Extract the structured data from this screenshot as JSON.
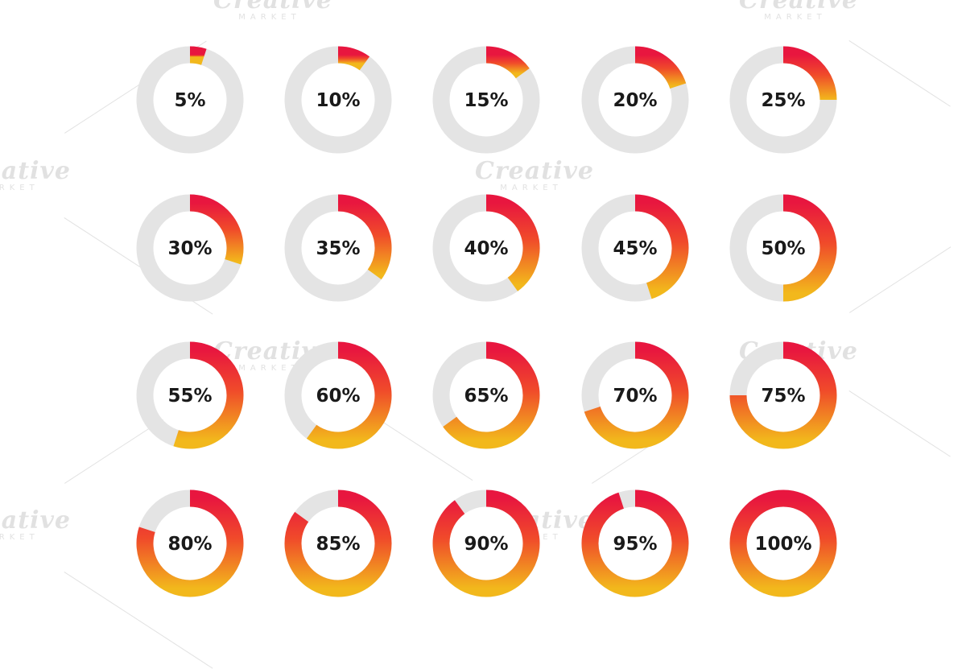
{
  "colors": {
    "track": "#e4e4e4",
    "inner": "#ffffff",
    "gradient_start": "#e8163f",
    "gradient_mid": "#f04b2a",
    "gradient_end": "#f2b81c",
    "label": "#1a1a1a"
  },
  "watermark": {
    "brand": "Creative",
    "sub": "MARKET"
  },
  "chart_data": {
    "type": "pie",
    "style": "donut-progress-grid",
    "rows": 4,
    "columns": 5,
    "values": [
      5,
      10,
      15,
      20,
      25,
      30,
      35,
      40,
      45,
      50,
      55,
      60,
      65,
      70,
      75,
      80,
      85,
      90,
      95,
      100
    ],
    "labels": [
      "5%",
      "10%",
      "15%",
      "20%",
      "25%",
      "30%",
      "35%",
      "40%",
      "45%",
      "50%",
      "55%",
      "60%",
      "65%",
      "70%",
      "75%",
      "80%",
      "85%",
      "90%",
      "95%",
      "100%"
    ],
    "unit": "%",
    "max": 100
  }
}
